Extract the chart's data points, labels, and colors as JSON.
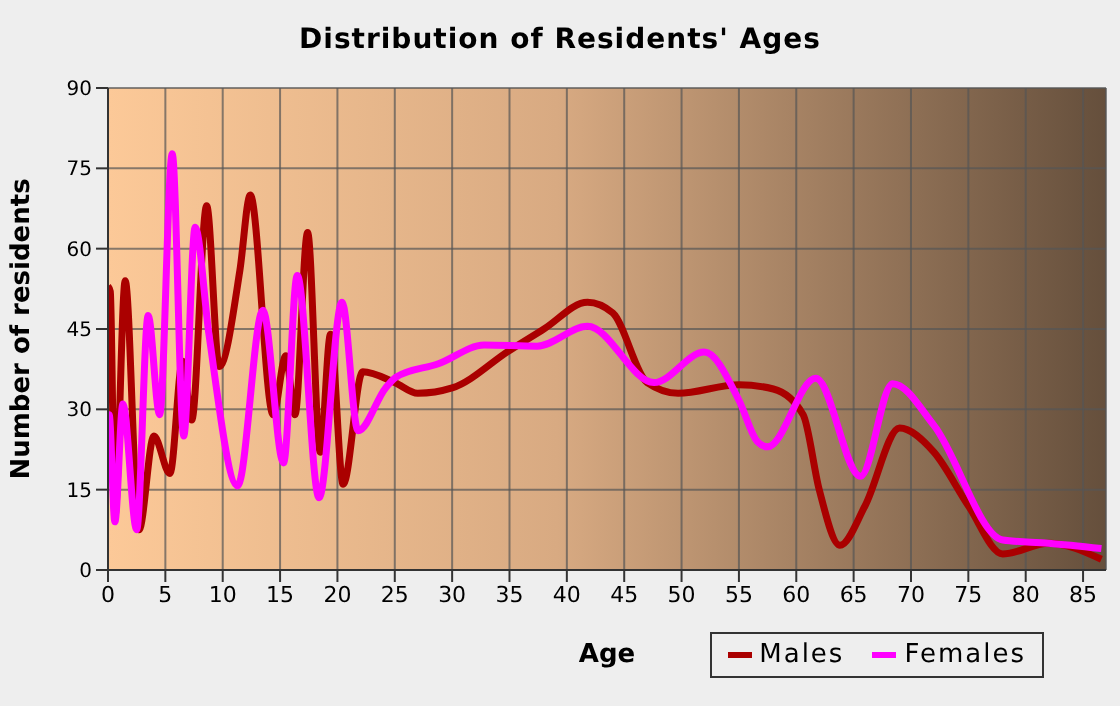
{
  "chart_data": {
    "type": "line",
    "title": "Distribution of Residents' Ages",
    "xlabel": "Age",
    "ylabel": "Number of residents",
    "xlim": [
      0,
      87
    ],
    "xticks": [
      0,
      5,
      10,
      15,
      20,
      25,
      30,
      35,
      40,
      45,
      50,
      55,
      60,
      65,
      70,
      75,
      80,
      85
    ],
    "ylim": [
      0,
      90
    ],
    "yticks": [
      0,
      15,
      30,
      45,
      60,
      75,
      90
    ],
    "grid": true,
    "legend": "bottom right",
    "marker": "none",
    "line_style": "solid",
    "series": [
      {
        "name": "Males",
        "color": "#aa0000",
        "x": [
          0,
          0.2,
          0.6,
          1.5,
          2.7,
          4,
          5.4,
          6.5,
          7.3,
          8.6,
          9.7,
          11.5,
          12.4,
          14.4,
          15.5,
          16.3,
          17.4,
          18.5,
          19.4,
          20.5,
          22.2,
          25,
          27,
          30,
          35,
          38,
          41.8,
          44,
          47,
          49.7,
          55,
          58,
          60.6,
          62,
          63.8,
          66,
          69,
          72,
          75,
          78,
          82,
          86.6
        ],
        "values": [
          53,
          52,
          10,
          54,
          7.5,
          25,
          18,
          39,
          28,
          68,
          38,
          56,
          70,
          29,
          40,
          29,
          63,
          22,
          44,
          16,
          37,
          35,
          33,
          34,
          41,
          45,
          50,
          48,
          35,
          33,
          34.6,
          33.8,
          29,
          15,
          4.6,
          12,
          26.5,
          22,
          12,
          3,
          5,
          2
        ]
      },
      {
        "name": "Females",
        "color": "#ff00ff",
        "x": [
          0,
          0.1,
          0.6,
          1.3,
          2.5,
          3.5,
          4.5,
          5.6,
          6.6,
          7.6,
          8.8,
          11.3,
          13.5,
          15.3,
          16.5,
          18.4,
          20.4,
          21.8,
          24.2,
          25.1,
          28.8,
          32.8,
          37.4,
          41.8,
          47.6,
          52,
          55,
          56.6,
          57.5,
          61.7,
          65.6,
          68.4,
          72,
          78,
          82,
          86.6
        ],
        "values": [
          29,
          29,
          9,
          31,
          7.5,
          47.5,
          29,
          77.7,
          25,
          64,
          44,
          15.7,
          48.5,
          20,
          55,
          13.5,
          50,
          26,
          34,
          36,
          38.5,
          42,
          41.8,
          45.5,
          35,
          40.7,
          31.7,
          24,
          23,
          35.8,
          17.5,
          34.8,
          27,
          5.6,
          5,
          4
        ]
      }
    ]
  }
}
